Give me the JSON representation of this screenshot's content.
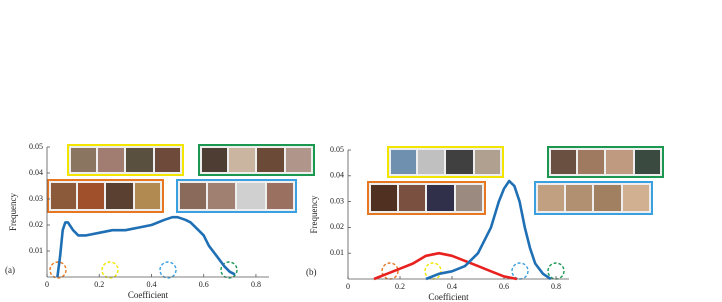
{
  "chart_data": [
    {
      "type": "line",
      "panel_label": "(a)",
      "xlabel": "Coefficient",
      "ylabel": "Frequency",
      "xlim": [
        0,
        0.85
      ],
      "ylim": [
        0,
        0.05
      ],
      "xticks": [
        0,
        0.2,
        0.4,
        0.6,
        0.8
      ],
      "yticks": [
        0.01,
        0.02,
        0.03,
        0.04,
        0.05
      ],
      "series": [
        {
          "color": "#1f6fb5",
          "x": [
            0.04,
            0.05,
            0.06,
            0.07,
            0.08,
            0.1,
            0.12,
            0.15,
            0.2,
            0.25,
            0.3,
            0.35,
            0.4,
            0.45,
            0.48,
            0.5,
            0.53,
            0.55,
            0.58,
            0.6,
            0.62,
            0.65,
            0.68,
            0.7,
            0.72
          ],
          "values": [
            0,
            0.008,
            0.018,
            0.021,
            0.021,
            0.018,
            0.016,
            0.016,
            0.017,
            0.018,
            0.018,
            0.019,
            0.02,
            0.022,
            0.023,
            0.023,
            0.022,
            0.021,
            0.018,
            0.016,
            0.012,
            0.008,
            0.004,
            0.002,
            0.001
          ]
        }
      ]
    },
    {
      "type": "line",
      "panel_label": "(b)",
      "xlabel": "Coefficient",
      "ylabel": "Frequency",
      "xlim": [
        0,
        0.85
      ],
      "ylim": [
        0,
        0.05
      ],
      "xticks": [
        0,
        0.2,
        0.4,
        0.6,
        0.8
      ],
      "yticks": [
        0.01,
        0.02,
        0.03,
        0.04,
        0.05
      ],
      "series": [
        {
          "color": "#e8211f",
          "x": [
            0.1,
            0.15,
            0.2,
            0.25,
            0.3,
            0.35,
            0.4,
            0.45,
            0.5,
            0.55,
            0.6,
            0.65
          ],
          "values": [
            0,
            0.002,
            0.004,
            0.006,
            0.009,
            0.01,
            0.009,
            0.007,
            0.005,
            0.003,
            0.001,
            0
          ]
        },
        {
          "color": "#1f6fb5",
          "x": [
            0.3,
            0.35,
            0.4,
            0.45,
            0.5,
            0.55,
            0.58,
            0.6,
            0.62,
            0.64,
            0.66,
            0.68,
            0.7,
            0.72,
            0.75,
            0.78
          ],
          "values": [
            0,
            0.002,
            0.003,
            0.005,
            0.01,
            0.02,
            0.03,
            0.035,
            0.038,
            0.036,
            0.03,
            0.02,
            0.012,
            0.006,
            0.002,
            0
          ]
        }
      ]
    }
  ]
}
